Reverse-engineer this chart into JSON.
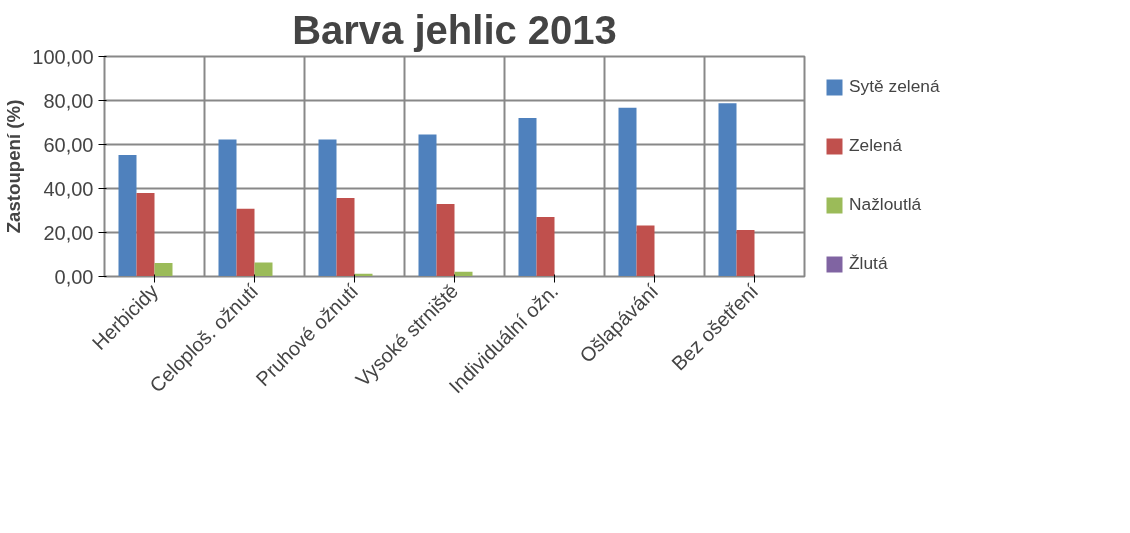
{
  "chart_data": {
    "type": "bar",
    "title": "Barva jehlic 2013",
    "ylabel": "Zastoupení (%)",
    "categories": [
      "Herbicidy",
      "Celoploš. ožnutí",
      "Pruhové ožnutí",
      "Vysoké strniště",
      "Individuální ožn.",
      "Ošlapávání",
      "Bez ošetření"
    ],
    "series": [
      {
        "name": "Sytě zelená",
        "color": "#4f81bd",
        "values": [
          55.2,
          62.3,
          62.3,
          64.6,
          72.0,
          76.7,
          78.8
        ]
      },
      {
        "name": "Zelená",
        "color": "#c0504d",
        "values": [
          38.0,
          30.8,
          35.7,
          33.0,
          27.1,
          23.2,
          21.1
        ]
      },
      {
        "name": "Nažloutlá",
        "color": "#9bbb59",
        "values": [
          6.1,
          6.4,
          1.3,
          2.2,
          0,
          0,
          0
        ]
      },
      {
        "name": "Žlutá",
        "color": "#8064a2",
        "values": [
          null,
          null,
          null,
          null,
          null,
          null,
          null
        ]
      }
    ],
    "ylim": [
      0,
      100
    ],
    "yticks": [
      {
        "value": 0,
        "label": "0,00"
      },
      {
        "value": 20,
        "label": "20,00"
      },
      {
        "value": 40,
        "label": "40,00"
      },
      {
        "value": 60,
        "label": "60,00"
      },
      {
        "value": 80,
        "label": "80,00"
      },
      {
        "value": 100,
        "label": "100,00"
      }
    ],
    "grid": true,
    "legend": "right"
  }
}
